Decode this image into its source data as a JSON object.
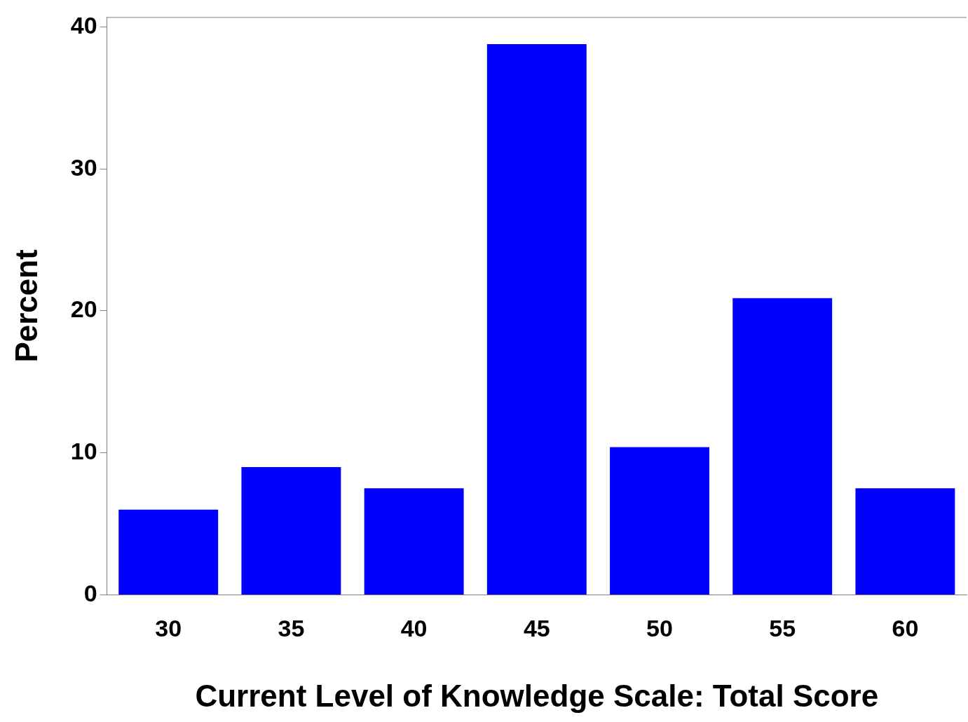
{
  "chart_data": {
    "type": "bar",
    "xlabel": "Current Level of Knowledge Scale: Total Score",
    "ylabel": "Percent",
    "categories": [
      "30",
      "35",
      "40",
      "45",
      "50",
      "55",
      "60"
    ],
    "values": [
      6.0,
      9.0,
      7.5,
      38.8,
      10.4,
      20.9,
      7.5
    ],
    "color": "#0000ff",
    "ylim": [
      0,
      40.7
    ],
    "yticks": [
      0,
      10,
      20,
      30,
      40
    ]
  }
}
